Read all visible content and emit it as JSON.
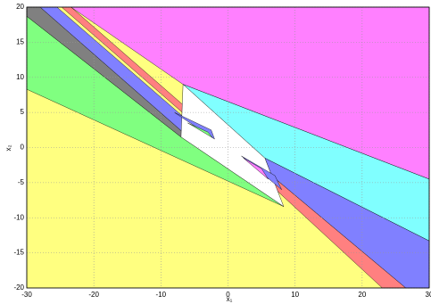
{
  "chart_data": {
    "type": "polygon",
    "xlabel": "x₁",
    "ylabel": "x₂",
    "xlim": [
      -30,
      30
    ],
    "ylim": [
      -20,
      20
    ],
    "xticks": [
      -30,
      -20,
      -10,
      0,
      10,
      20,
      30
    ],
    "yticks": [
      -20,
      -15,
      -10,
      -5,
      0,
      5,
      10,
      15,
      20
    ],
    "grid": true,
    "series": [
      {
        "color": "#ffff80",
        "x": [
          -30,
          30,
          30,
          -30
        ],
        "y": [
          20,
          20,
          -20,
          -20
        ]
      },
      {
        "color": "#ff80ff",
        "x": [
          -23.4,
          30,
          30,
          -6.7
        ],
        "y": [
          20,
          20,
          -4.5,
          9.0
        ]
      },
      {
        "color": "#80ffff",
        "x": [
          -6.7,
          30,
          30,
          5.5
        ],
        "y": [
          9.0,
          -4.5,
          -13.3,
          -1.5
        ]
      },
      {
        "color": "#8080ff",
        "x": [
          5.5,
          30,
          30,
          26.5,
          6.5
        ],
        "y": [
          -1.5,
          -13.3,
          -20,
          -20,
          -4
        ]
      },
      {
        "color": "#ff8080",
        "x": [
          6.5,
          26.5,
          23,
          6
        ],
        "y": [
          -4,
          -20,
          -20,
          -5
        ]
      },
      {
        "color": "#80ff80",
        "x": [
          -30,
          -7,
          8.3,
          -30
        ],
        "y": [
          18.7,
          1.5,
          -8.4,
          8.3
        ]
      },
      {
        "color": "#808080",
        "x": [
          -30,
          -28,
          -6.5,
          -7,
          -30
        ],
        "y": [
          20,
          20,
          2,
          1.5,
          18.7
        ]
      },
      {
        "color": "#8080ff",
        "x": [
          -28,
          -25.5,
          -5,
          -6.5
        ],
        "y": [
          20,
          20,
          3,
          2
        ]
      },
      {
        "color": "#ff8080",
        "x": [
          -24.8,
          -23.4,
          -3,
          -3.8
        ],
        "y": [
          20,
          20,
          3,
          2.5
        ]
      },
      {
        "color": "#ffffff",
        "x": [
          -6.7,
          5.5,
          8.3,
          -7
        ],
        "y": [
          9.0,
          -1.5,
          -8.4,
          1.5
        ]
      },
      {
        "color": "#8080ff",
        "x": [
          -8,
          -2,
          -2.5
        ],
        "y": [
          5,
          1.2,
          2.5
        ]
      },
      {
        "color": "#80ff80",
        "x": [
          -6,
          -2.3,
          -3
        ],
        "y": [
          3.5,
          1.4,
          2.2
        ]
      },
      {
        "color": "#8080ff",
        "x": [
          2,
          8,
          7
        ],
        "y": [
          -1.2,
          -6,
          -4
        ]
      },
      {
        "color": "#ff80ff",
        "x": [
          2.3,
          6,
          5
        ],
        "y": [
          -1.5,
          -4.5,
          -3
        ]
      }
    ]
  }
}
